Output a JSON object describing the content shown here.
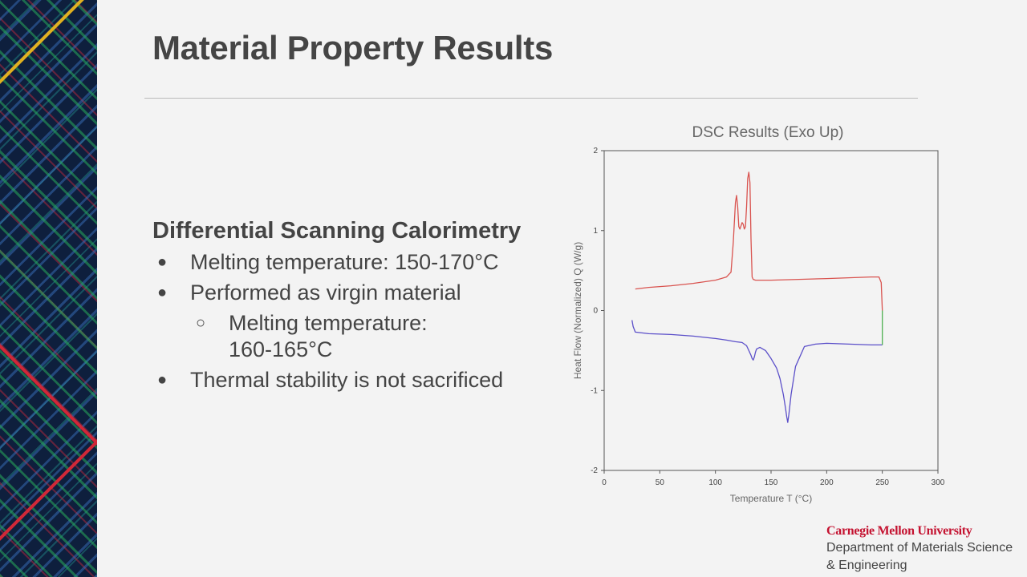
{
  "slide": {
    "title": "Material Property Results",
    "section_heading": "Differential Scanning Calorimetry",
    "bullets": [
      {
        "text": "Melting temperature: 150-170°C",
        "marker": "●",
        "level": 1
      },
      {
        "text": "Performed as virgin material",
        "marker": "●",
        "level": 1
      },
      {
        "text": "Melting temperature:",
        "marker": "○",
        "level": 2
      },
      {
        "text": "160-165°C",
        "marker": "",
        "level": 2
      },
      {
        "text": "Thermal stability is not sacrificed",
        "marker": "●",
        "level": 1
      }
    ]
  },
  "footer": {
    "university": "Carnegie Mellon University",
    "department_line1": "Department of Materials Science",
    "department_line2": "& Engineering"
  },
  "colors": {
    "heating_curve": "#d9534f",
    "cooling_curve": "#5b4fc9",
    "transition_segment": "#4caf50",
    "cmu_red": "#c41230"
  },
  "chart_data": {
    "type": "line",
    "title": "DSC Results (Exo Up)",
    "xlabel": "Temperature T (°C)",
    "ylabel": "Heat Flow (Normalized) Q (W/g)",
    "xlim": [
      0,
      300
    ],
    "ylim": [
      -2,
      2
    ],
    "xticks": [
      0,
      50,
      100,
      150,
      200,
      250,
      300
    ],
    "yticks": [
      -2,
      -1,
      0,
      1,
      2
    ],
    "grid": false,
    "series": [
      {
        "color": "#d9534f",
        "x": [
          28,
          40,
          60,
          80,
          100,
          110,
          114,
          116,
          118,
          119,
          120,
          121,
          122,
          124,
          125,
          126,
          127,
          128,
          129,
          130,
          131,
          132,
          133,
          134,
          136,
          150,
          200,
          240,
          247,
          249,
          250
        ],
        "y": [
          0.27,
          0.29,
          0.31,
          0.34,
          0.38,
          0.42,
          0.48,
          0.85,
          1.35,
          1.44,
          1.3,
          1.05,
          1.02,
          1.1,
          1.08,
          1.02,
          1.05,
          1.3,
          1.65,
          1.73,
          1.6,
          0.9,
          0.42,
          0.39,
          0.38,
          0.38,
          0.4,
          0.42,
          0.42,
          0.35,
          0.0
        ]
      },
      {
        "color": "#5b4fc9",
        "x": [
          25,
          26,
          28,
          40,
          60,
          80,
          100,
          110,
          118,
          124,
          128,
          130,
          132,
          133,
          134,
          135,
          136,
          137,
          140,
          145,
          150,
          155,
          158,
          161,
          163,
          164,
          165,
          166,
          168,
          172,
          180,
          190,
          200,
          240,
          250
        ],
        "y": [
          -0.12,
          -0.2,
          -0.27,
          -0.29,
          -0.3,
          -0.32,
          -0.35,
          -0.37,
          -0.39,
          -0.4,
          -0.44,
          -0.5,
          -0.56,
          -0.6,
          -0.62,
          -0.58,
          -0.52,
          -0.48,
          -0.46,
          -0.5,
          -0.6,
          -0.72,
          -0.85,
          -1.05,
          -1.22,
          -1.32,
          -1.4,
          -1.3,
          -1.05,
          -0.7,
          -0.45,
          -0.42,
          -0.41,
          -0.43,
          -0.43
        ]
      },
      {
        "color": "#4caf50",
        "x": [
          250,
          250
        ],
        "y": [
          0.0,
          -0.43
        ]
      }
    ]
  }
}
